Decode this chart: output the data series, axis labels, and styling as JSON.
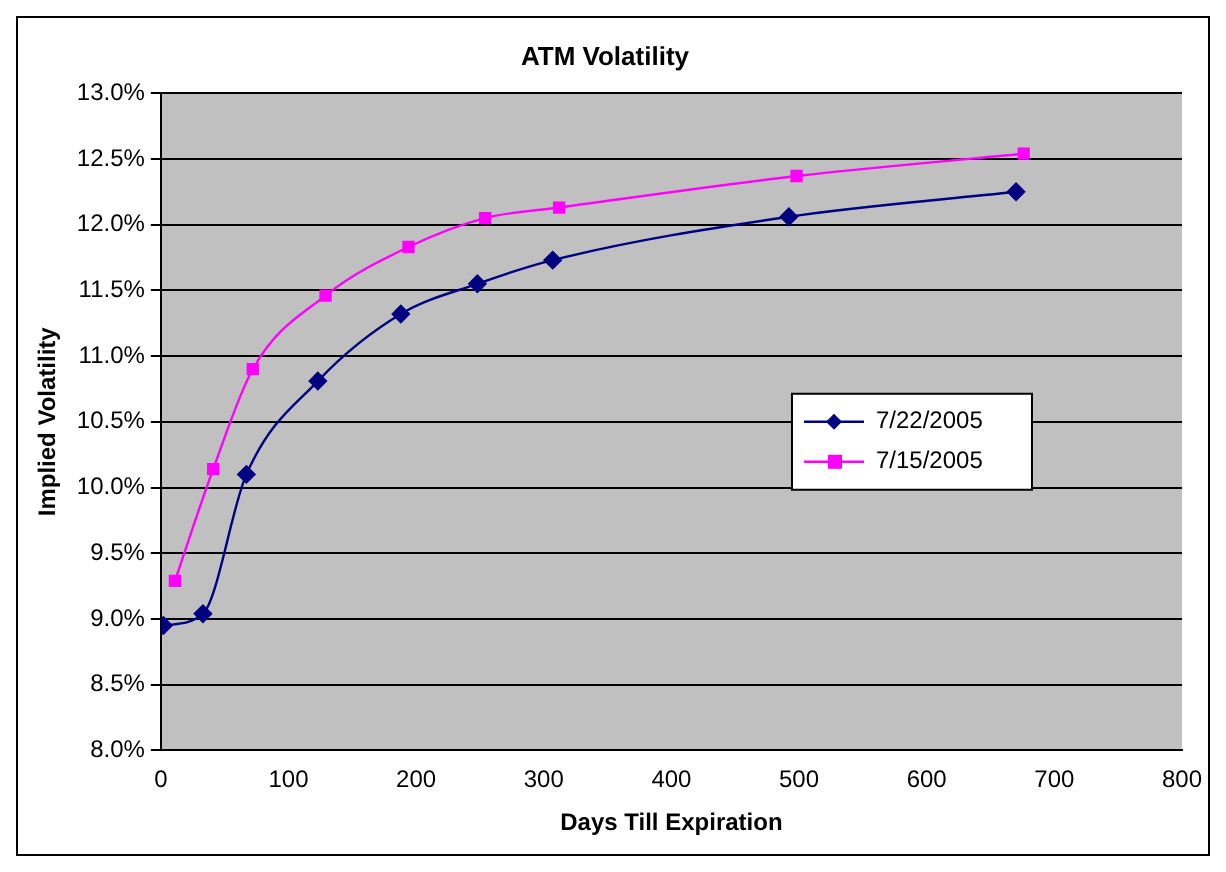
{
  "chart_data": {
    "type": "line",
    "title": "ATM Volatility",
    "xlabel": "Days Till Expiration",
    "ylabel": "Implied Volatility",
    "xlim": [
      0,
      800
    ],
    "xticks": [
      0,
      100,
      200,
      300,
      400,
      500,
      600,
      700,
      800
    ],
    "ylim": [
      8,
      13
    ],
    "yticks": [
      {
        "value": 8,
        "label": "8.0%"
      },
      {
        "value": 8.5,
        "label": "8.5%"
      },
      {
        "value": 9,
        "label": "9.0%"
      },
      {
        "value": 9.5,
        "label": "9.5%"
      },
      {
        "value": 10,
        "label": "10.0%"
      },
      {
        "value": 10.5,
        "label": "10.5%"
      },
      {
        "value": 11,
        "label": "11.0%"
      },
      {
        "value": 11.5,
        "label": "11.5%"
      },
      {
        "value": 12,
        "label": "12.0%"
      },
      {
        "value": 12.5,
        "label": "12.5%"
      },
      {
        "value": 13,
        "label": "13.0%"
      }
    ],
    "grid": "y",
    "legend": "right",
    "series": [
      {
        "name": "7/22/2005",
        "color": "#000080",
        "marker": "diamond",
        "x": [
          2,
          33,
          67,
          123,
          188,
          248,
          307,
          492,
          670
        ],
        "values": [
          8.95,
          9.04,
          10.1,
          10.81,
          11.32,
          11.55,
          11.73,
          12.06,
          12.25
        ]
      },
      {
        "name": "7/15/2005",
        "color": "#ff00ff",
        "marker": "square",
        "x": [
          11,
          41,
          72,
          129,
          194,
          254,
          312,
          498,
          676
        ],
        "values": [
          9.29,
          10.14,
          10.9,
          11.46,
          11.83,
          12.05,
          12.13,
          12.37,
          12.54
        ]
      }
    ]
  }
}
